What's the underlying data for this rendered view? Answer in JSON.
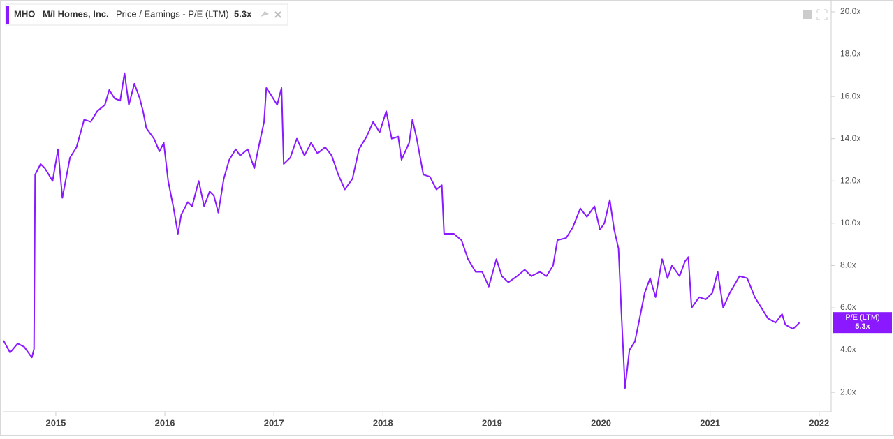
{
  "header": {
    "ticker": "MHO",
    "company": "M/I Homes, Inc.",
    "metric": "Price / Earnings - P/E (LTM)",
    "value_label": "5.3x"
  },
  "chart_data": {
    "type": "line",
    "x": [
      2014.52,
      2014.58,
      2014.65,
      2014.71,
      2014.78,
      2014.8,
      2014.81,
      2014.86,
      2014.9,
      2014.97,
      2015.02,
      2015.06,
      2015.13,
      2015.19,
      2015.26,
      2015.32,
      2015.38,
      2015.45,
      2015.49,
      2015.54,
      2015.59,
      2015.63,
      2015.67,
      2015.72,
      2015.77,
      2015.8,
      2015.83,
      2015.9,
      2015.95,
      2015.99,
      2016.03,
      2016.08,
      2016.12,
      2016.15,
      2016.21,
      2016.25,
      2016.31,
      2016.36,
      2016.41,
      2016.45,
      2016.49,
      2016.54,
      2016.59,
      2016.65,
      2016.69,
      2016.76,
      2016.82,
      2016.86,
      2016.91,
      2016.93,
      2016.97,
      2017.03,
      2017.07,
      2017.09,
      2017.15,
      2017.21,
      2017.28,
      2017.34,
      2017.4,
      2017.47,
      2017.53,
      2017.59,
      2017.65,
      2017.72,
      2017.78,
      2017.85,
      2017.91,
      2017.97,
      2018.03,
      2018.08,
      2018.14,
      2018.17,
      2018.24,
      2018.27,
      2018.31,
      2018.37,
      2018.43,
      2018.49,
      2018.54,
      2018.56,
      2018.65,
      2018.72,
      2018.78,
      2018.85,
      2018.91,
      2018.97,
      2019.04,
      2019.09,
      2019.15,
      2019.23,
      2019.3,
      2019.36,
      2019.44,
      2019.5,
      2019.56,
      2019.6,
      2019.68,
      2019.74,
      2019.81,
      2019.87,
      2019.94,
      2019.99,
      2020.03,
      2020.08,
      2020.12,
      2020.16,
      2020.19,
      2020.22,
      2020.26,
      2020.31,
      2020.35,
      2020.4,
      2020.45,
      2020.5,
      2020.56,
      2020.61,
      2020.65,
      2020.72,
      2020.77,
      2020.8,
      2020.83,
      2020.9,
      2020.96,
      2021.02,
      2021.07,
      2021.12,
      2021.18,
      2021.27,
      2021.34,
      2021.41,
      2021.47,
      2021.53,
      2021.6,
      2021.66,
      2021.69,
      2021.76,
      2021.82
    ],
    "series": [
      {
        "name": "P/E (LTM)",
        "color": "#8a19ff",
        "values": [
          4.45,
          3.88,
          4.31,
          4.15,
          3.65,
          4.05,
          12.3,
          12.8,
          12.6,
          12.0,
          13.5,
          11.2,
          13.1,
          13.6,
          14.9,
          14.8,
          15.3,
          15.6,
          16.3,
          15.9,
          15.8,
          17.1,
          15.6,
          16.6,
          15.9,
          15.3,
          14.5,
          14.0,
          13.4,
          13.8,
          12.0,
          10.7,
          9.5,
          10.4,
          11.0,
          10.8,
          12.0,
          10.8,
          11.5,
          11.3,
          10.5,
          12.1,
          13.0,
          13.5,
          13.2,
          13.5,
          12.6,
          13.6,
          14.8,
          16.4,
          16.1,
          15.6,
          16.4,
          12.8,
          13.1,
          14.0,
          13.2,
          13.8,
          13.3,
          13.6,
          13.2,
          12.3,
          11.6,
          12.1,
          13.5,
          14.1,
          14.8,
          14.3,
          15.3,
          14.0,
          14.1,
          13.0,
          13.8,
          14.9,
          14.0,
          12.3,
          12.2,
          11.6,
          11.8,
          9.5,
          9.5,
          9.2,
          8.3,
          7.7,
          7.7,
          7.0,
          8.3,
          7.5,
          7.2,
          7.5,
          7.8,
          7.5,
          7.7,
          7.5,
          8.0,
          9.2,
          9.3,
          9.8,
          10.7,
          10.3,
          10.8,
          9.7,
          10.0,
          11.1,
          9.7,
          8.8,
          5.4,
          2.2,
          4.0,
          4.4,
          5.4,
          6.7,
          7.4,
          6.5,
          8.3,
          7.4,
          8.0,
          7.5,
          8.2,
          8.4,
          6.0,
          6.5,
          6.4,
          6.7,
          7.7,
          6.0,
          6.7,
          7.5,
          7.4,
          6.5,
          6.0,
          5.5,
          5.3,
          5.7,
          5.2,
          5.0,
          5.3
        ]
      }
    ],
    "xlim": [
      2014.52,
      2022.11
    ],
    "xticks": [
      2015,
      2016,
      2017,
      2018,
      2019,
      2020,
      2021,
      2022
    ],
    "ylim": [
      1.08,
      20.56
    ],
    "yticks": [
      {
        "value": 2,
        "label": "2.0x"
      },
      {
        "value": 4,
        "label": "4.0x"
      },
      {
        "value": 6,
        "label": "6.0x"
      },
      {
        "value": 8,
        "label": "8.0x"
      },
      {
        "value": 10,
        "label": "10.0x"
      },
      {
        "value": 12,
        "label": "12.0x"
      },
      {
        "value": 14,
        "label": "14.0x"
      },
      {
        "value": 16,
        "label": "16.0x"
      },
      {
        "value": 18,
        "label": "18.0x"
      },
      {
        "value": 20,
        "label": "20.0x"
      }
    ],
    "grid": false
  }
}
